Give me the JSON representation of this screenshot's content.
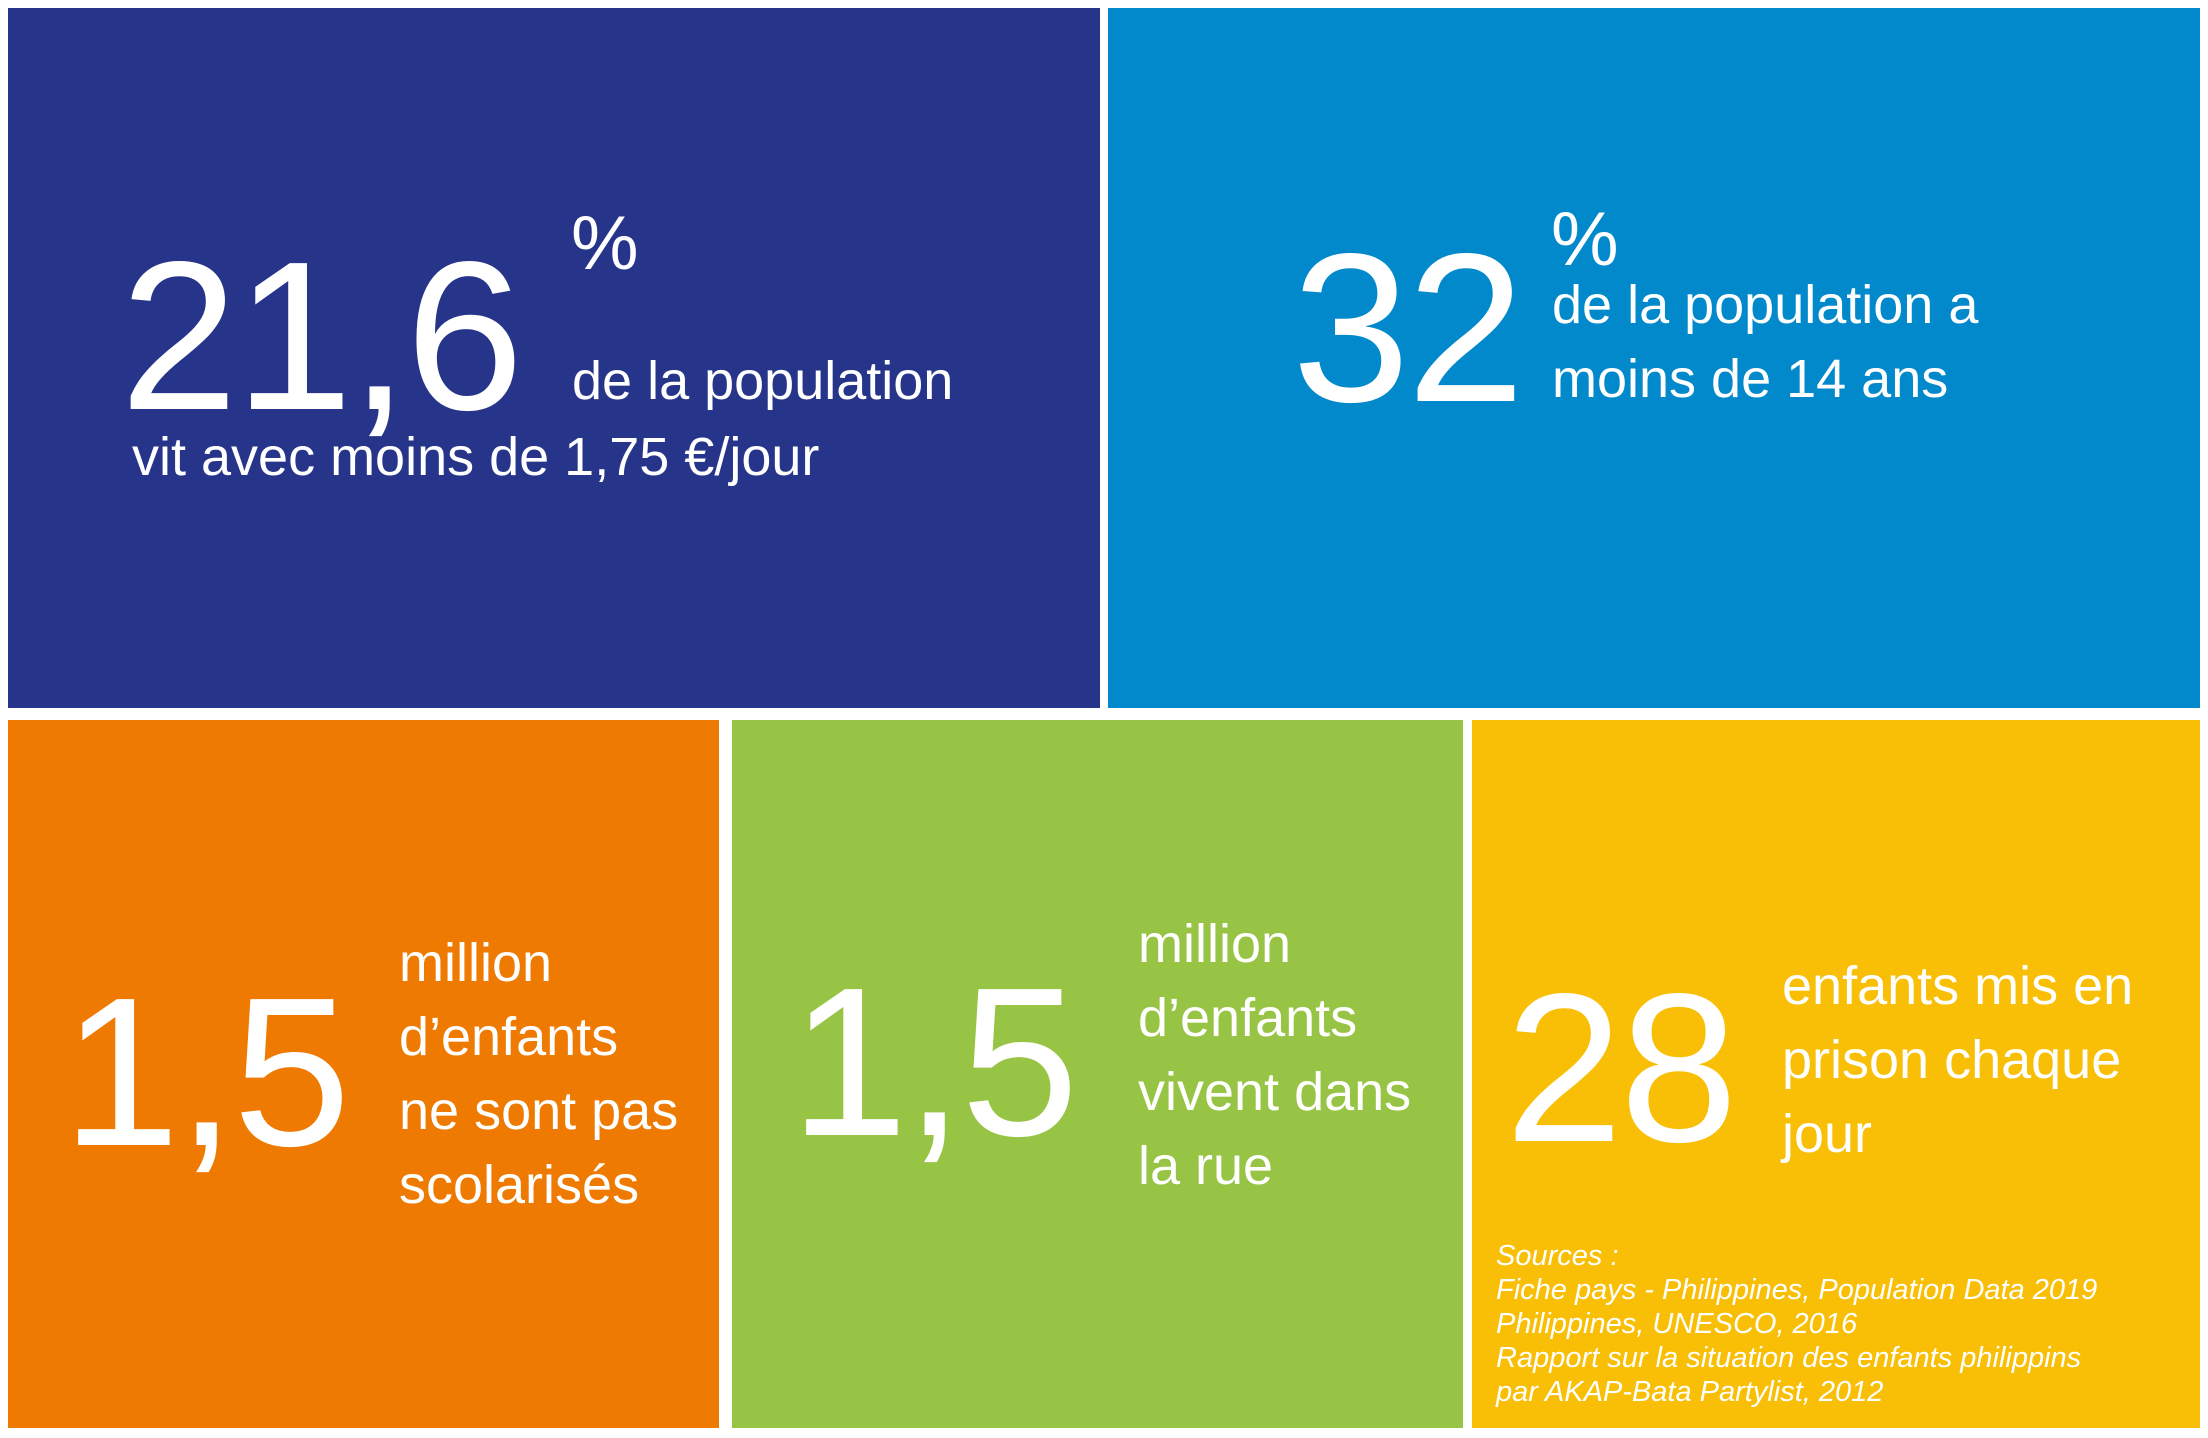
{
  "colors": {
    "tile1": "#26358a",
    "tile2": "#0289cb",
    "tile3": "#ef7a01",
    "tile4": "#98c445",
    "tile5": "#f8bf06",
    "text": "#ffffff"
  },
  "stats": [
    {
      "number": "21,6",
      "unit": "%",
      "lines": [
        "de la population",
        "vit avec moins de 1,75 €/jour"
      ]
    },
    {
      "number": "32",
      "unit": "%",
      "lines": [
        "de la population a",
        "moins de 14 ans"
      ]
    },
    {
      "number": "1,5",
      "lines": [
        "million",
        "d’enfants",
        "ne sont pas",
        "scolarisés"
      ]
    },
    {
      "number": "1,5",
      "lines": [
        "million",
        "d’enfants",
        "vivent dans",
        "la rue"
      ]
    },
    {
      "number": "28",
      "lines": [
        "enfants mis en",
        "prison chaque",
        "jour"
      ]
    }
  ],
  "sources": {
    "heading": "Sources :",
    "items": [
      "Fiche pays - Philippines, Population Data 2019",
      "Philippines, UNESCO, 2016",
      "Rapport sur la situation des enfants philippins",
      "par AKAP-Bata Partylist, 2012"
    ]
  }
}
